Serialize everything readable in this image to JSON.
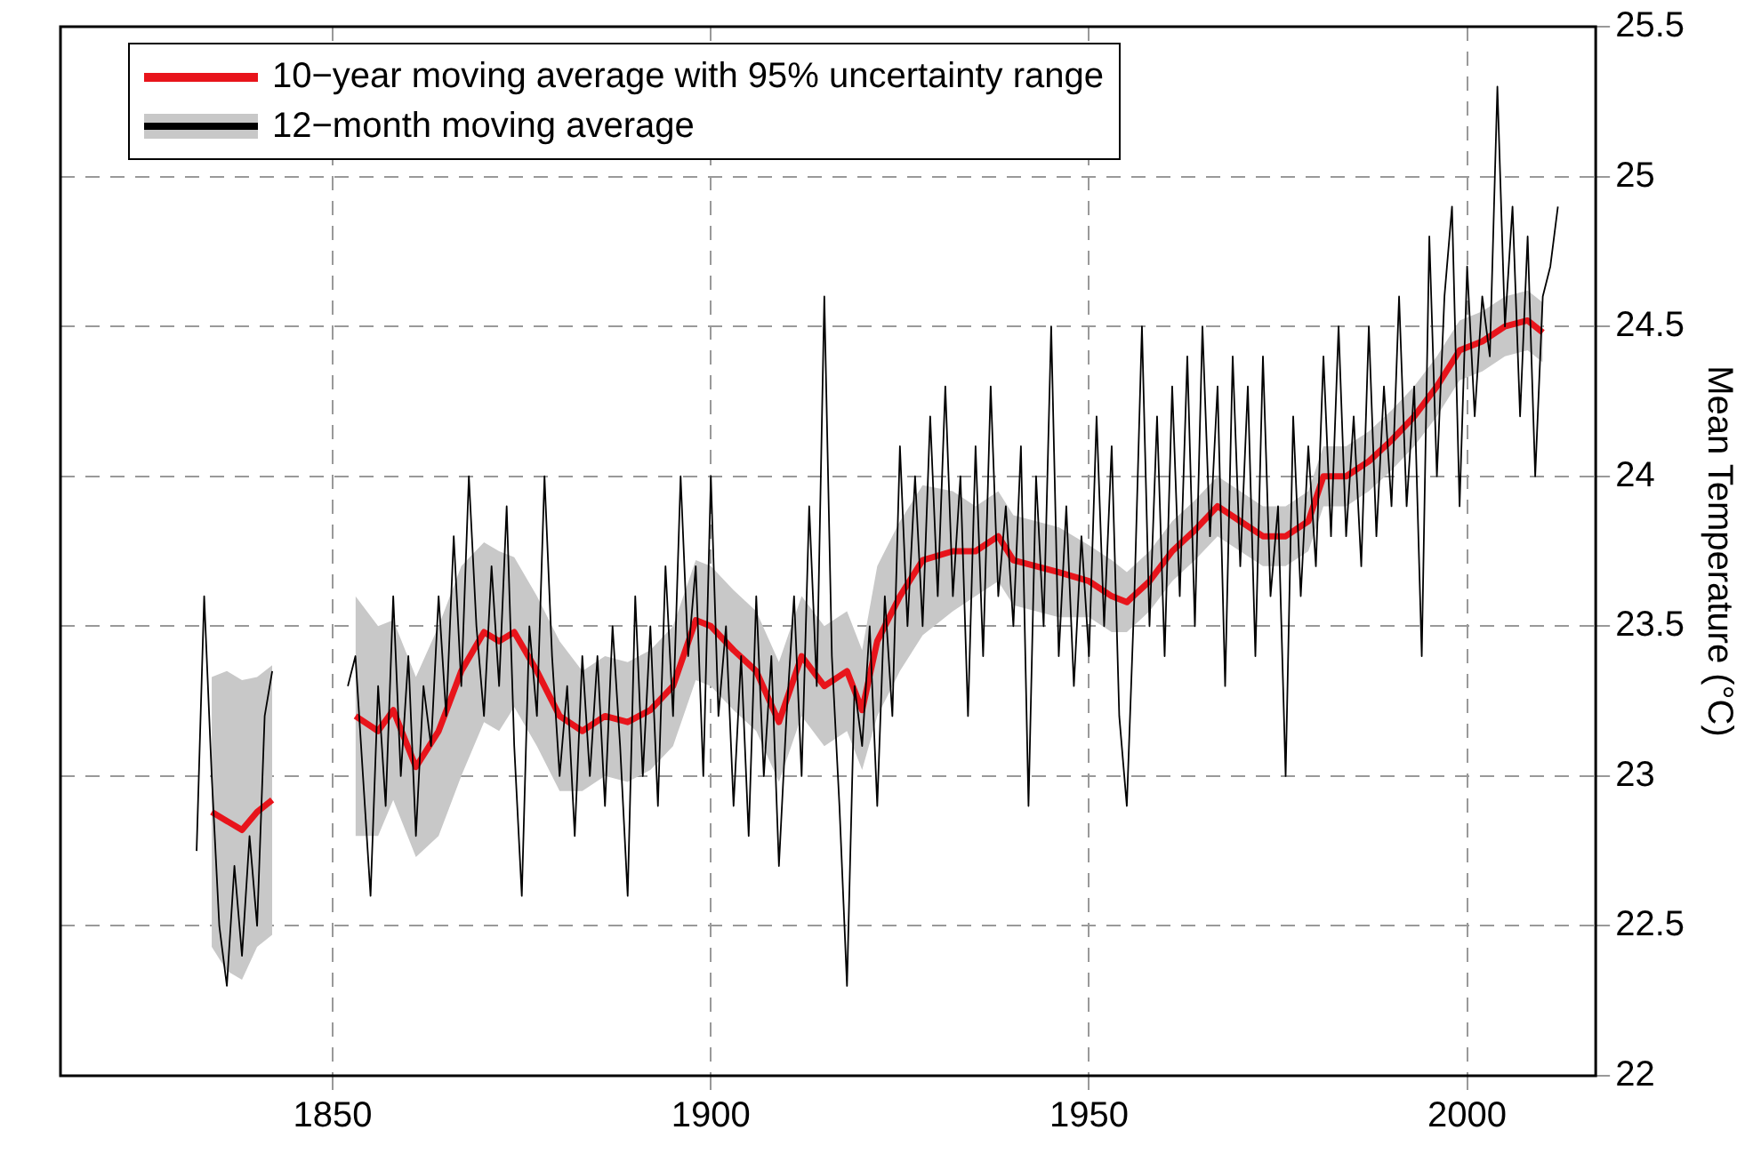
{
  "chart_data": {
    "type": "line",
    "ylabel": "Mean Temperature (°C)",
    "xlim": [
      1814,
      2017
    ],
    "xticks": [
      1850,
      1900,
      1950,
      2000
    ],
    "ylim": [
      22,
      25.5
    ],
    "yticks": [
      22,
      22.5,
      23,
      23.5,
      24,
      24.5,
      25,
      25.5
    ],
    "grid": true,
    "legend": "top left",
    "series": [
      {
        "name": "10−year moving average with 95% uncertainty range",
        "color": "#e8141b",
        "x": [
          1834,
          1836,
          1838,
          1840,
          1842,
          1847,
          1853,
          1856,
          1858,
          1861,
          1864,
          1867,
          1870,
          1872,
          1874,
          1877,
          1880,
          1883,
          1886,
          1889,
          1892,
          1895,
          1898,
          1900,
          1903,
          1906,
          1909,
          1912,
          1915,
          1918,
          1920,
          1922,
          1925,
          1928,
          1932,
          1935,
          1938,
          1940,
          1943,
          1946,
          1950,
          1953,
          1955,
          1958,
          1961,
          1964,
          1967,
          1970,
          1973,
          1976,
          1979,
          1981,
          1984,
          1987,
          1990,
          1993,
          1996,
          1999,
          2002,
          2005,
          2008,
          2010
        ],
        "values": [
          22.88,
          22.85,
          22.82,
          22.88,
          22.92,
          null,
          23.2,
          23.15,
          23.22,
          23.03,
          23.15,
          23.35,
          23.48,
          23.45,
          23.48,
          23.35,
          23.2,
          23.15,
          23.2,
          23.18,
          23.22,
          23.3,
          23.52,
          23.5,
          23.42,
          23.35,
          23.18,
          23.4,
          23.3,
          23.35,
          23.22,
          23.45,
          23.6,
          23.72,
          23.75,
          23.75,
          23.8,
          23.72,
          23.7,
          23.68,
          23.65,
          23.6,
          23.58,
          23.65,
          23.75,
          23.82,
          23.9,
          23.85,
          23.8,
          23.8,
          23.85,
          24.0,
          24.0,
          24.05,
          24.12,
          24.2,
          24.3,
          24.42,
          24.45,
          24.5,
          24.52,
          24.48
        ],
        "lower": [
          22.43,
          22.35,
          22.32,
          22.43,
          22.47,
          null,
          22.8,
          22.8,
          22.92,
          22.73,
          22.8,
          23.0,
          23.18,
          23.15,
          23.23,
          23.1,
          22.95,
          22.95,
          23.0,
          22.98,
          23.02,
          23.1,
          23.32,
          23.3,
          23.22,
          23.15,
          22.98,
          23.2,
          23.1,
          23.15,
          23.02,
          23.2,
          23.35,
          23.47,
          23.55,
          23.6,
          23.65,
          23.57,
          23.55,
          23.53,
          23.53,
          23.48,
          23.48,
          23.55,
          23.65,
          23.72,
          23.8,
          23.75,
          23.7,
          23.7,
          23.75,
          23.9,
          23.9,
          23.95,
          24.02,
          24.1,
          24.2,
          24.32,
          24.35,
          24.4,
          24.42,
          24.38
        ],
        "upper": [
          23.33,
          23.35,
          23.32,
          23.33,
          23.37,
          null,
          23.6,
          23.5,
          23.52,
          23.33,
          23.5,
          23.7,
          23.78,
          23.75,
          23.73,
          23.6,
          23.45,
          23.35,
          23.4,
          23.38,
          23.42,
          23.5,
          23.72,
          23.7,
          23.62,
          23.55,
          23.38,
          23.6,
          23.5,
          23.55,
          23.42,
          23.7,
          23.85,
          23.97,
          23.95,
          23.9,
          23.95,
          23.87,
          23.85,
          23.83,
          23.77,
          23.72,
          23.68,
          23.75,
          23.85,
          23.92,
          24.0,
          23.95,
          23.9,
          23.9,
          23.95,
          24.1,
          24.1,
          24.15,
          24.22,
          24.3,
          24.4,
          24.52,
          24.55,
          24.6,
          24.62,
          24.58
        ]
      },
      {
        "name": "12−month moving average",
        "color": "#000000",
        "x": [
          1832,
          1833,
          1834,
          1835,
          1836,
          1837,
          1838,
          1839,
          1840,
          1841,
          1842,
          1847,
          1852,
          1853,
          1854,
          1855,
          1856,
          1857,
          1858,
          1859,
          1860,
          1861,
          1862,
          1863,
          1864,
          1865,
          1866,
          1867,
          1868,
          1869,
          1870,
          1871,
          1872,
          1873,
          1874,
          1875,
          1876,
          1877,
          1878,
          1879,
          1880,
          1881,
          1882,
          1883,
          1884,
          1885,
          1886,
          1887,
          1888,
          1889,
          1890,
          1891,
          1892,
          1893,
          1894,
          1895,
          1896,
          1897,
          1898,
          1899,
          1900,
          1901,
          1902,
          1903,
          1904,
          1905,
          1906,
          1907,
          1908,
          1909,
          1910,
          1911,
          1912,
          1913,
          1914,
          1915,
          1916,
          1917,
          1918,
          1919,
          1920,
          1921,
          1922,
          1923,
          1924,
          1925,
          1926,
          1927,
          1928,
          1929,
          1930,
          1931,
          1932,
          1933,
          1934,
          1935,
          1936,
          1937,
          1938,
          1939,
          1940,
          1941,
          1942,
          1943,
          1944,
          1945,
          1946,
          1947,
          1948,
          1949,
          1950,
          1951,
          1952,
          1953,
          1954,
          1955,
          1956,
          1957,
          1958,
          1959,
          1960,
          1961,
          1962,
          1963,
          1964,
          1965,
          1966,
          1967,
          1968,
          1969,
          1970,
          1971,
          1972,
          1973,
          1974,
          1975,
          1976,
          1977,
          1978,
          1979,
          1980,
          1981,
          1982,
          1983,
          1984,
          1985,
          1986,
          1987,
          1988,
          1989,
          1990,
          1991,
          1992,
          1993,
          1994,
          1995,
          1996,
          1997,
          1998,
          1999,
          2000,
          2001,
          2002,
          2003,
          2004,
          2005,
          2006,
          2007,
          2008,
          2009,
          2010,
          2011,
          2012
        ],
        "values": [
          22.75,
          23.6,
          23.0,
          22.5,
          22.3,
          22.7,
          22.4,
          22.8,
          22.5,
          23.2,
          23.35,
          null,
          23.3,
          23.4,
          23.0,
          22.6,
          23.3,
          22.9,
          23.6,
          23.0,
          23.4,
          22.8,
          23.3,
          23.1,
          23.6,
          23.2,
          23.8,
          23.3,
          24.0,
          23.5,
          23.2,
          23.7,
          23.3,
          23.9,
          23.1,
          22.6,
          23.5,
          23.2,
          24.0,
          23.4,
          23.0,
          23.3,
          22.8,
          23.4,
          23.0,
          23.4,
          22.9,
          23.5,
          23.1,
          22.6,
          23.6,
          23.0,
          23.5,
          22.9,
          23.7,
          23.2,
          24.0,
          23.4,
          23.7,
          23.0,
          24.0,
          23.2,
          23.5,
          22.9,
          23.4,
          22.8,
          23.6,
          23.0,
          23.4,
          22.7,
          23.2,
          23.6,
          23.0,
          23.9,
          23.3,
          24.6,
          23.4,
          22.9,
          22.3,
          23.3,
          23.1,
          23.5,
          22.9,
          23.6,
          23.2,
          24.1,
          23.5,
          24.0,
          23.5,
          24.2,
          23.6,
          24.3,
          23.6,
          24.0,
          23.2,
          24.1,
          23.4,
          24.3,
          23.6,
          23.9,
          23.5,
          24.1,
          22.9,
          24.0,
          23.5,
          24.5,
          23.4,
          23.9,
          23.3,
          23.8,
          23.4,
          24.2,
          23.5,
          24.1,
          23.2,
          22.9,
          23.6,
          24.5,
          23.5,
          24.2,
          23.4,
          24.3,
          23.6,
          24.4,
          23.5,
          24.5,
          23.8,
          24.3,
          23.3,
          24.4,
          23.7,
          24.3,
          23.4,
          24.4,
          23.6,
          23.9,
          23.0,
          24.2,
          23.6,
          24.1,
          23.7,
          24.4,
          23.8,
          24.5,
          23.8,
          24.2,
          23.7,
          24.5,
          23.8,
          24.3,
          23.9,
          24.6,
          23.9,
          24.3,
          23.4,
          24.8,
          24.0,
          24.6,
          24.9,
          23.9,
          24.7,
          24.2,
          24.6,
          24.4,
          25.3,
          24.5,
          24.9,
          24.2,
          24.8,
          24.0,
          24.6,
          24.7,
          24.9
        ]
      }
    ]
  }
}
